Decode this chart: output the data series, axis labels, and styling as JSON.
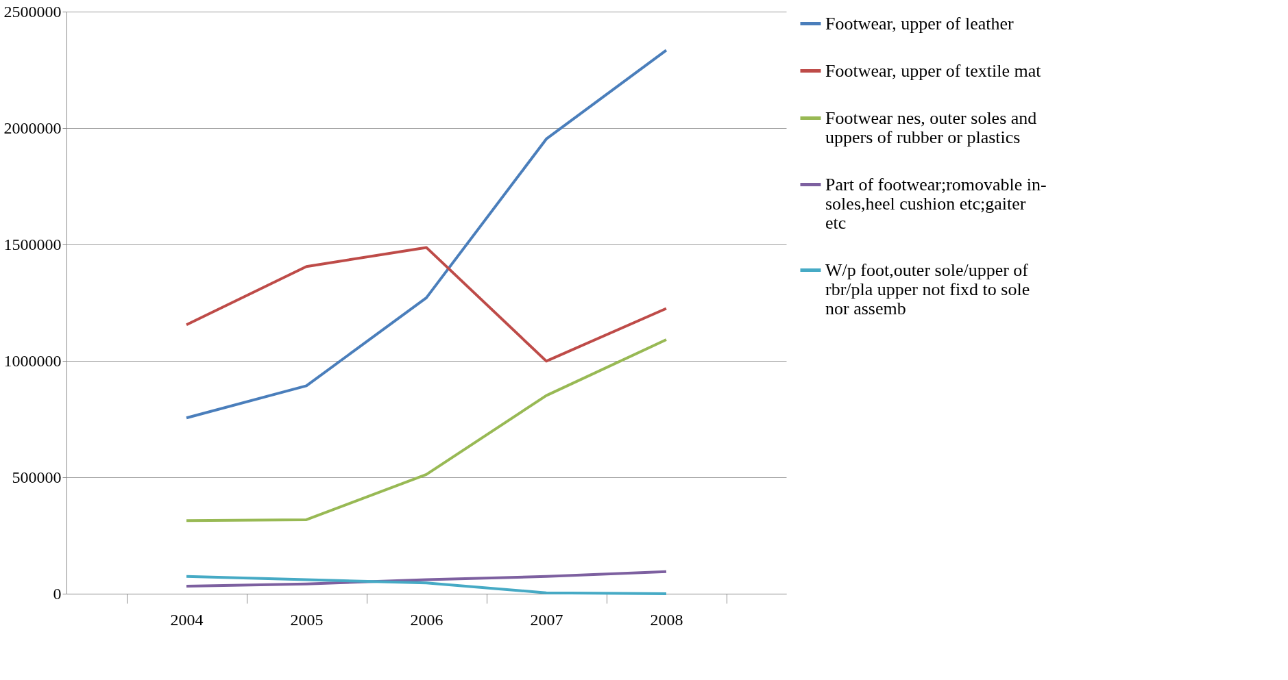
{
  "chart_data": {
    "type": "line",
    "categories": [
      "2004",
      "2005",
      "2006",
      "2007",
      "2008"
    ],
    "series": [
      {
        "name": "Footwear, upper of leather",
        "color": "#4a7ebb",
        "values": [
          755000,
          893000,
          1271000,
          1953000,
          2334000
        ]
      },
      {
        "name": "Footwear, upper of textile mat",
        "color": "#be4b48",
        "values": [
          1155000,
          1405000,
          1487000,
          999000,
          1225000
        ]
      },
      {
        "name": "Footwear nes, outer soles and uppers of rubber or plastics",
        "color": "#98b954",
        "values": [
          314000,
          318000,
          512000,
          851000,
          1091000
        ]
      },
      {
        "name": "Part of footwear;romovable in-soles,heel cushion etc;gaiter etc",
        "color": "#7d60a0",
        "values": [
          32000,
          42000,
          60000,
          74000,
          95000
        ]
      },
      {
        "name": "W/p foot,outer sole/upper of rbr/pla upper not fixd to sole nor assemb",
        "color": "#46aac5",
        "values": [
          74000,
          60000,
          46000,
          4000,
          0
        ]
      }
    ],
    "ylim": [
      0,
      2500000
    ],
    "yticks": [
      0,
      500000,
      1000000,
      1500000,
      2000000,
      2500000
    ],
    "grid": "y",
    "legend": "right",
    "marker": "none",
    "line_style": "solid"
  }
}
